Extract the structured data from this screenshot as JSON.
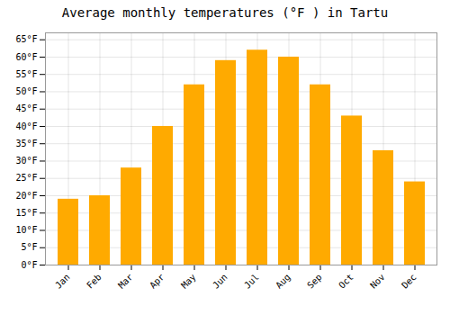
{
  "chart_data": {
    "type": "bar",
    "title": "Average monthly temperatures (°F ) in Tartu",
    "categories": [
      "Jan",
      "Feb",
      "Mar",
      "Apr",
      "May",
      "Jun",
      "Jul",
      "Aug",
      "Sep",
      "Oct",
      "Nov",
      "Dec"
    ],
    "values": [
      19,
      20,
      28,
      40,
      52,
      59,
      62,
      60,
      52,
      43,
      33,
      24
    ],
    "color": "#FFAA00",
    "ylim": [
      0,
      67
    ],
    "yticks": [
      {
        "value": 0,
        "label": "0°F"
      },
      {
        "value": 5,
        "label": "5°F"
      },
      {
        "value": 10,
        "label": "10°F"
      },
      {
        "value": 15,
        "label": "15°F"
      },
      {
        "value": 20,
        "label": "20°F"
      },
      {
        "value": 25,
        "label": "25°F"
      },
      {
        "value": 30,
        "label": "30°F"
      },
      {
        "value": 35,
        "label": "35°F"
      },
      {
        "value": 40,
        "label": "40°F"
      },
      {
        "value": 45,
        "label": "45°F"
      },
      {
        "value": 50,
        "label": "50°F"
      },
      {
        "value": 55,
        "label": "55°F"
      },
      {
        "value": 60,
        "label": "60°F"
      },
      {
        "value": 65,
        "label": "65°F"
      }
    ],
    "grid": true
  }
}
